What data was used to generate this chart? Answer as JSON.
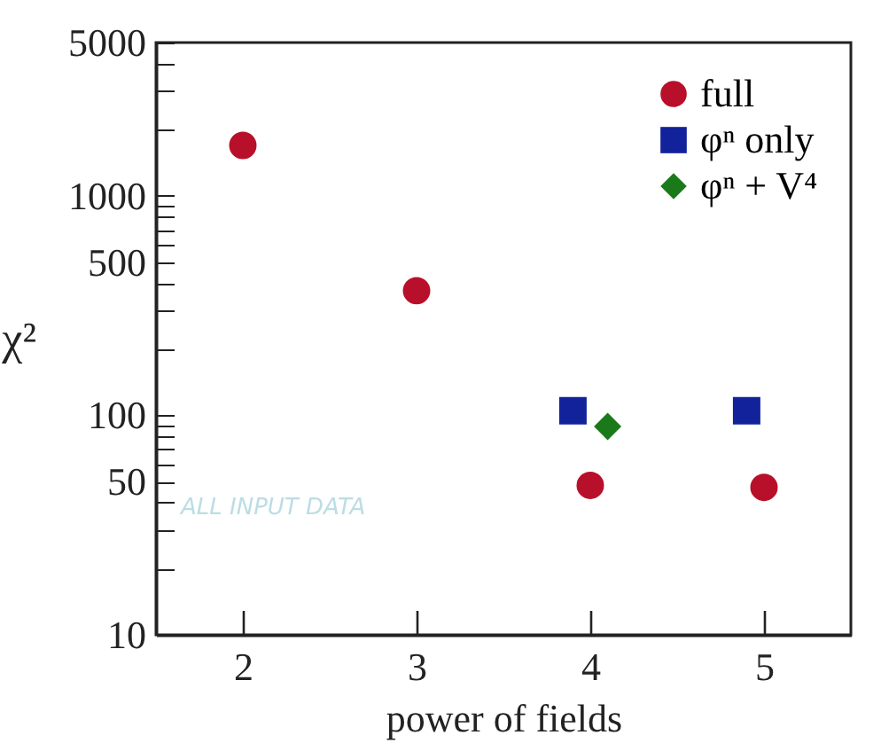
{
  "chart_data": {
    "type": "scatter",
    "xlabel": "power of fields",
    "ylabel": "χ²",
    "log": "y",
    "xlim": [
      1.5,
      5.5
    ],
    "xticks": [
      2,
      3,
      4,
      5
    ],
    "ylim": [
      10,
      5000
    ],
    "yticks": [
      10,
      {
        "value": 20,
        "label": null
      },
      {
        "value": 30,
        "label": null
      },
      {
        "value": 40,
        "label": null
      },
      50,
      {
        "value": 60,
        "label": null
      },
      {
        "value": 70,
        "label": null
      },
      {
        "value": 80,
        "label": null
      },
      {
        "value": 90,
        "label": null
      },
      100,
      {
        "value": 200,
        "label": null
      },
      {
        "value": 300,
        "label": null
      },
      {
        "value": 400,
        "label": null
      },
      500,
      {
        "value": 600,
        "label": null
      },
      {
        "value": 700,
        "label": null
      },
      {
        "value": 800,
        "label": null
      },
      {
        "value": 900,
        "label": null
      },
      1000,
      {
        "value": 2000,
        "label": null
      },
      {
        "value": 3000,
        "label": null
      },
      {
        "value": 4000,
        "label": null
      },
      5000
    ],
    "legend": "top right",
    "grid": false,
    "annotations": [
      "ALL INPUT DATA"
    ],
    "series": [
      {
        "name": "full",
        "color": "#b8102a",
        "marker": "circle",
        "x": [
          2,
          3,
          4,
          5
        ],
        "values": [
          1700,
          370,
          48,
          47
        ]
      },
      {
        "name": "φⁿ only",
        "color": "#12229a",
        "marker": "square",
        "x": [
          3.9,
          4.9
        ],
        "values": [
          105,
          105
        ]
      },
      {
        "name": "φⁿ + V⁴",
        "color": "#1a7a1a",
        "marker": "diamond",
        "x": [
          4.1
        ],
        "values": [
          89
        ]
      }
    ]
  }
}
